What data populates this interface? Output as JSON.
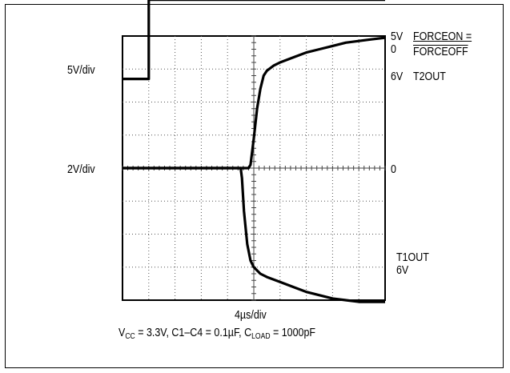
{
  "chart_data": {
    "type": "line",
    "title": "",
    "grid": "on",
    "x_scale": {
      "label": "4µs/div",
      "divisions": 10,
      "x_range_us": [
        0,
        40
      ]
    },
    "channels": [
      {
        "scale_label": "5V/div"
      },
      {
        "scale_label": "2V/div"
      }
    ],
    "right_labels": {
      "top_5v": "5V",
      "top_0": "0",
      "forceon": "FORCEON =",
      "forceoff": "FORCEOFF",
      "t2out_6v": "6V",
      "t2out": "T2OUT",
      "mid_0": "0",
      "t1out": "T1OUT",
      "t1out_6v": "6V"
    },
    "series": [
      {
        "name": "FORCEON = FORCEOFF",
        "x_us": [
          0,
          4.0,
          4.0,
          40
        ],
        "y_div": [
          0.8,
          0.8,
          3.2,
          3.2
        ]
      },
      {
        "name": "T2OUT",
        "x_us": [
          0,
          19.2,
          19.5,
          20.0,
          20.5,
          21.0,
          21.5,
          22.0,
          23.0,
          24.0,
          26.0,
          28.0,
          30.0,
          32.0,
          34.0,
          36.0,
          38.0,
          40.0
        ],
        "y_div": [
          0.0,
          0.0,
          0.1,
          0.9,
          1.8,
          2.4,
          2.8,
          2.95,
          3.1,
          3.2,
          3.35,
          3.5,
          3.6,
          3.7,
          3.8,
          3.85,
          3.9,
          3.95
        ]
      },
      {
        "name": "T1OUT",
        "x_us": [
          0,
          18.0,
          18.2,
          18.5,
          19.0,
          19.5,
          20.0,
          21.0,
          22.0,
          24.0,
          26.0,
          28.0,
          30.0,
          32.0,
          34.0,
          36.0,
          38.0,
          40.0
        ],
        "y_div": [
          0.0,
          0.0,
          -0.3,
          -1.3,
          -2.3,
          -2.8,
          -3.0,
          -3.2,
          -3.3,
          -3.45,
          -3.6,
          -3.75,
          -3.85,
          -3.95,
          -4.0,
          -4.05,
          -4.05,
          -4.05
        ]
      }
    ],
    "caption": {
      "v": "V",
      "cc": "CC",
      "mid": " = 3.3V, C1–C4 = 0.1µF, C",
      "load": "LOAD",
      "end": " = 1000pF"
    }
  }
}
